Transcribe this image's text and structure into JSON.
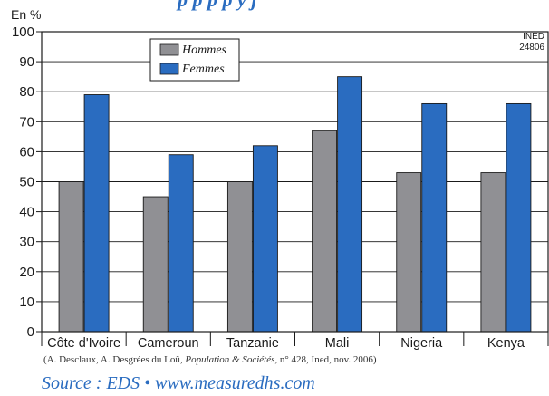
{
  "header": {
    "partial_title": "p p p p y j"
  },
  "chart_data": {
    "type": "bar",
    "unit_label": "En %",
    "ylim": [
      0,
      100
    ],
    "yticks": [
      0,
      10,
      20,
      30,
      40,
      50,
      60,
      70,
      80,
      90,
      100
    ],
    "grid": true,
    "legend_position": "top-left",
    "categories": [
      "Côte d'Ivoire",
      "Cameroun",
      "Tanzanie",
      "Mali",
      "Nigeria",
      "Kenya"
    ],
    "series": [
      {
        "name": "Hommes",
        "color": "#909094",
        "values": [
          50,
          45,
          50,
          67,
          53,
          53
        ]
      },
      {
        "name": "Femmes",
        "color": "#2a6cc0",
        "values": [
          79,
          59,
          62,
          85,
          76,
          76
        ]
      }
    ],
    "annotation": [
      "INED",
      "24806"
    ]
  },
  "citation": {
    "before": "(A. Desclaux, A. Desgrées du Loû, ",
    "journal": "Population & Sociétés",
    "after": ", n° 428, Ined, nov. 2006)"
  },
  "source": "Source : EDS • www.measuredhs.com"
}
